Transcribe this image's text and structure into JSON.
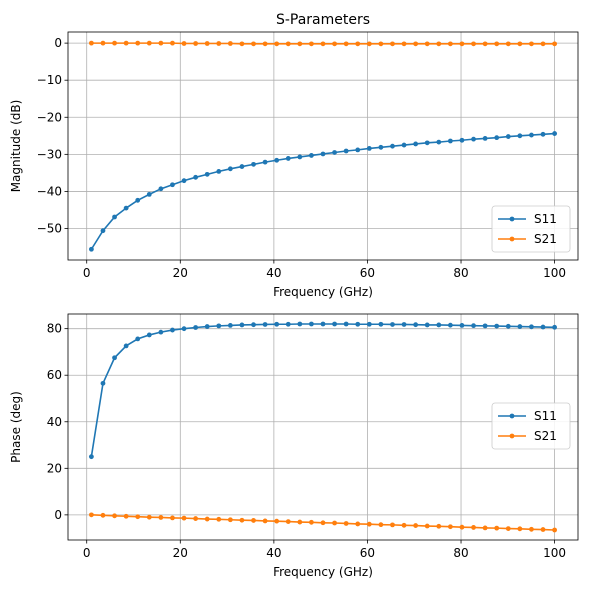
{
  "chart_data": [
    {
      "type": "line",
      "title": "S-Parameters",
      "xlabel": "Frequency (GHz)",
      "ylabel": "Magnitude (dB)",
      "xlim": [
        -4,
        105
      ],
      "ylim": [
        -58.5,
        3
      ],
      "xticks": [
        0,
        20,
        40,
        60,
        80,
        100
      ],
      "yticks": [
        0,
        -10,
        -20,
        -30,
        -40,
        -50
      ],
      "grid": true,
      "legend_position": "lower-right",
      "x": [
        1.0,
        3.475,
        5.95,
        8.425,
        10.9,
        13.375,
        15.85,
        18.325,
        20.8,
        23.275,
        25.75,
        28.225,
        30.7,
        33.175,
        35.65,
        38.125,
        40.6,
        43.075,
        45.55,
        48.025,
        50.5,
        52.975,
        55.45,
        57.925,
        60.4,
        62.875,
        65.35,
        67.825,
        70.3,
        72.775,
        75.25,
        77.725,
        80.2,
        82.675,
        85.15,
        87.625,
        90.1,
        92.575,
        95.05,
        97.525,
        100.0
      ],
      "series": [
        {
          "name": "S11",
          "color": "#1f77b4",
          "values": [
            -55.6,
            -50.6,
            -46.9,
            -44.5,
            -42.4,
            -40.8,
            -39.3,
            -38.2,
            -37.1,
            -36.2,
            -35.4,
            -34.6,
            -33.9,
            -33.3,
            -32.7,
            -32.1,
            -31.6,
            -31.1,
            -30.7,
            -30.3,
            -29.9,
            -29.5,
            -29.1,
            -28.8,
            -28.4,
            -28.1,
            -27.8,
            -27.5,
            -27.2,
            -26.9,
            -26.7,
            -26.4,
            -26.2,
            -25.9,
            -25.7,
            -25.5,
            -25.2,
            -25.0,
            -24.8,
            -24.6,
            -24.4
          ]
        },
        {
          "name": "S21",
          "color": "#ff7f0e",
          "values": [
            0.0,
            0.0,
            0.0,
            0.0,
            0.0,
            0.0,
            0.0,
            0.0,
            -0.1,
            -0.1,
            -0.1,
            -0.1,
            -0.1,
            -0.2,
            -0.2,
            -0.2,
            -0.2,
            -0.2,
            -0.2,
            -0.2,
            -0.2,
            -0.2,
            -0.2,
            -0.2,
            -0.2,
            -0.2,
            -0.2,
            -0.2,
            -0.2,
            -0.2,
            -0.2,
            -0.2,
            -0.2,
            -0.2,
            -0.2,
            -0.2,
            -0.2,
            -0.2,
            -0.2,
            -0.2,
            -0.2
          ]
        }
      ]
    },
    {
      "type": "line",
      "title": "",
      "xlabel": "Frequency (GHz)",
      "ylabel": "Phase (deg)",
      "xlim": [
        -4,
        105
      ],
      "ylim": [
        -10.8,
        86.3
      ],
      "xticks": [
        0,
        20,
        40,
        60,
        80,
        100
      ],
      "yticks": [
        0,
        20,
        40,
        60,
        80
      ],
      "grid": true,
      "legend_position": "center-right",
      "x": [
        1.0,
        3.475,
        5.95,
        8.425,
        10.9,
        13.375,
        15.85,
        18.325,
        20.8,
        23.275,
        25.75,
        28.225,
        30.7,
        33.175,
        35.65,
        38.125,
        40.6,
        43.075,
        45.55,
        48.025,
        50.5,
        52.975,
        55.45,
        57.925,
        60.4,
        62.875,
        65.35,
        67.825,
        70.3,
        72.775,
        75.25,
        77.725,
        80.2,
        82.675,
        85.15,
        87.625,
        90.1,
        92.575,
        95.05,
        97.525,
        100.0
      ],
      "series": [
        {
          "name": "S11",
          "color": "#1f77b4",
          "values": [
            25.0,
            56.5,
            67.5,
            72.6,
            75.6,
            77.3,
            78.5,
            79.4,
            80.0,
            80.5,
            80.9,
            81.2,
            81.4,
            81.6,
            81.7,
            81.8,
            81.9,
            81.9,
            82.0,
            82.0,
            82.0,
            82.0,
            82.0,
            81.9,
            81.9,
            81.9,
            81.8,
            81.8,
            81.7,
            81.6,
            81.6,
            81.5,
            81.4,
            81.3,
            81.2,
            81.1,
            81.0,
            80.9,
            80.8,
            80.7,
            80.6
          ]
        },
        {
          "name": "S21",
          "color": "#ff7f0e",
          "values": [
            0.0,
            -0.2,
            -0.4,
            -0.6,
            -0.8,
            -1.0,
            -1.1,
            -1.3,
            -1.4,
            -1.6,
            -1.8,
            -1.9,
            -2.1,
            -2.3,
            -2.4,
            -2.6,
            -2.7,
            -2.9,
            -3.1,
            -3.2,
            -3.4,
            -3.5,
            -3.7,
            -3.9,
            -4.0,
            -4.2,
            -4.3,
            -4.5,
            -4.6,
            -4.8,
            -4.9,
            -5.1,
            -5.3,
            -5.4,
            -5.6,
            -5.7,
            -5.9,
            -6.0,
            -6.2,
            -6.3,
            -6.5
          ]
        }
      ]
    }
  ]
}
